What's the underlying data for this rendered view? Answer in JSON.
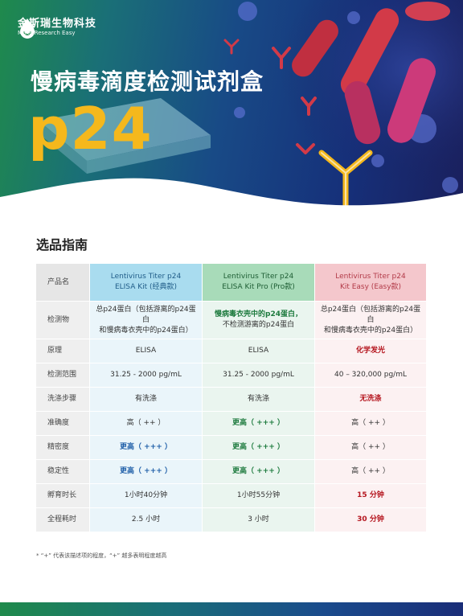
{
  "brand": {
    "name_cn": "金斯瑞生物科技",
    "tagline": "Make Research Easy"
  },
  "hero": {
    "title": "慢病毒滴度检测试剂盒",
    "subtitle": "p24"
  },
  "section_title": "选品指南",
  "table": {
    "header": {
      "label": "产品名",
      "products": [
        {
          "line1": "Lentivirus Titer p24",
          "line2": "ELISA Kit (经典款)"
        },
        {
          "line1": "Lentivirus Titer p24",
          "line2": "ELISA Kit Pro (Pro款)"
        },
        {
          "line1": "Lentivirus Titer p24",
          "line2": "Kit Easy (Easy款)"
        }
      ]
    },
    "rows": [
      {
        "label": "检测物",
        "cells": [
          {
            "line1": "总p24蛋白（包括游离的p24蛋白",
            "line2": "和慢病毒衣壳中的p24蛋白）"
          },
          {
            "line1": "慢病毒衣壳中的p24蛋白，",
            "line2": "不检测游离的p24蛋白"
          },
          {
            "line1": "总p24蛋白（包括游离的p24蛋白",
            "line2": "和慢病毒衣壳中的p24蛋白）"
          }
        ]
      },
      {
        "label": "原理",
        "cells": [
          "ELISA",
          "ELISA",
          "化学发光"
        ]
      },
      {
        "label": "检测范围",
        "cells": [
          "31.25 - 2000 pg/mL",
          "31.25 - 2000 pg/mL",
          "40 – 320,000 pg/mL"
        ]
      },
      {
        "label": "洗涤步骤",
        "cells": [
          "有洗涤",
          "有洗涤",
          "无洗涤"
        ]
      },
      {
        "label": "准确度",
        "cells": [
          "高（ ++ ）",
          "更高（ +++ ）",
          "高（ ++ ）"
        ]
      },
      {
        "label": "精密度",
        "cells": [
          "更高（ +++ ）",
          "更高（ +++ ）",
          "高（ ++ ）"
        ]
      },
      {
        "label": "稳定性",
        "cells": [
          "更高（ +++ ）",
          "更高（ +++ ）",
          "高（ ++ ）"
        ]
      },
      {
        "label": "孵育时长",
        "cells": [
          "1小时40分钟",
          "1小时55分钟",
          "15 分钟"
        ]
      },
      {
        "label": "全程耗时",
        "cells": [
          "2.5 小时",
          "3 小时",
          "30 分钟"
        ]
      }
    ]
  },
  "footnote": "* “+” 代表该描述项的程度，“+” 越多表明程度越高",
  "colors": {
    "accent_yellow": "#f5b81c",
    "green": "#1c7a3d",
    "blue": "#1f5fa8",
    "red": "#b5161f"
  }
}
